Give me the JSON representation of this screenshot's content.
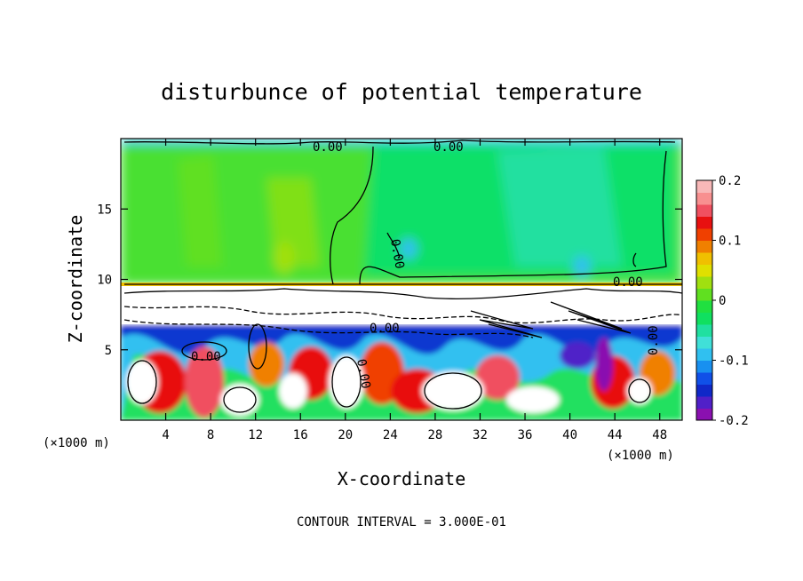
{
  "chart_data": {
    "type": "heatmap",
    "title": "disturbunce of potential temperature",
    "xlabel": "X-coordinate",
    "ylabel": "Z-coordinate",
    "x_unit": "(×1000 m)",
    "x_unit_right": "(×1000 m)",
    "xlim": [
      0,
      50
    ],
    "ylim": [
      0,
      20
    ],
    "x_ticks": [
      4,
      8,
      12,
      16,
      20,
      24,
      28,
      32,
      36,
      40,
      44,
      48
    ],
    "y_ticks": [
      5,
      10,
      15
    ],
    "colorbar": {
      "range": [
        -0.2,
        0.2
      ],
      "ticks": [
        "0.2",
        "0.1",
        "0",
        "-0.1",
        "-0.2"
      ],
      "colors": [
        "#8a10b0",
        "#5020c8",
        "#1028c8",
        "#1050e8",
        "#1890f0",
        "#30c0f0",
        "#40e0d8",
        "#20e0a0",
        "#10e060",
        "#20e040",
        "#60e020",
        "#a0e010",
        "#e0e000",
        "#f0c000",
        "#f08000",
        "#f04000",
        "#e81010",
        "#f05060",
        "#f89090",
        "#f8b8b8"
      ]
    },
    "contour_interval": "CONTOUR INTERVAL = 3.000E-01",
    "contour_labels": [
      "0.00",
      "0.00",
      "0.00",
      "0.00",
      "0.00",
      "0.00",
      "0.00",
      "0.00"
    ]
  }
}
